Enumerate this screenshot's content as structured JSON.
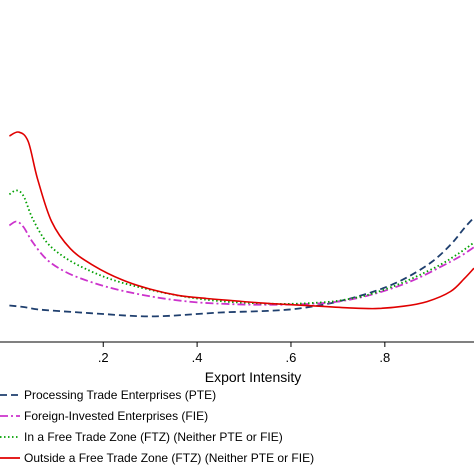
{
  "chart_data": {
    "type": "line",
    "title": "",
    "xlabel": "Export Intensity",
    "ylabel": "",
    "xlim": [
      -0.02,
      0.99
    ],
    "ylim": [
      0,
      4.4
    ],
    "x_ticks": [
      0.2,
      0.4,
      0.6,
      0.8
    ],
    "x_tick_labels": [
      ".2",
      ".4",
      ".6",
      ".8"
    ],
    "grid": false,
    "legend_position": "bottom",
    "series": [
      {
        "name": "Processing Trade Enterprises (PTE)",
        "color": "#1f3f6e",
        "dash": "dash",
        "points": [
          [
            0,
            0.47
          ],
          [
            0.03,
            0.45
          ],
          [
            0.06,
            0.42
          ],
          [
            0.1,
            0.4
          ],
          [
            0.15,
            0.38
          ],
          [
            0.2,
            0.36
          ],
          [
            0.25,
            0.34
          ],
          [
            0.3,
            0.33
          ],
          [
            0.35,
            0.34
          ],
          [
            0.4,
            0.36
          ],
          [
            0.45,
            0.38
          ],
          [
            0.5,
            0.39
          ],
          [
            0.55,
            0.4
          ],
          [
            0.6,
            0.42
          ],
          [
            0.65,
            0.46
          ],
          [
            0.7,
            0.52
          ],
          [
            0.75,
            0.6
          ],
          [
            0.8,
            0.7
          ],
          [
            0.85,
            0.84
          ],
          [
            0.9,
            1.03
          ],
          [
            0.94,
            1.25
          ],
          [
            0.97,
            1.47
          ],
          [
            0.99,
            1.6
          ]
        ]
      },
      {
        "name": "Foreign-Invested Enterprises (FIE)",
        "color": "#cc33cc",
        "dash": "dashdot",
        "points": [
          [
            0,
            1.5
          ],
          [
            0.015,
            1.55
          ],
          [
            0.03,
            1.48
          ],
          [
            0.05,
            1.28
          ],
          [
            0.08,
            1.06
          ],
          [
            0.12,
            0.9
          ],
          [
            0.17,
            0.78
          ],
          [
            0.22,
            0.69
          ],
          [
            0.28,
            0.61
          ],
          [
            0.34,
            0.55
          ],
          [
            0.4,
            0.51
          ],
          [
            0.46,
            0.49
          ],
          [
            0.52,
            0.48
          ],
          [
            0.58,
            0.48
          ],
          [
            0.64,
            0.49
          ],
          [
            0.7,
            0.52
          ],
          [
            0.76,
            0.59
          ],
          [
            0.82,
            0.7
          ],
          [
            0.87,
            0.82
          ],
          [
            0.92,
            0.97
          ],
          [
            0.96,
            1.1
          ],
          [
            0.99,
            1.22
          ]
        ]
      },
      {
        "name": "In a Free Trade Zone (FTZ)  (Neither PTE or FIE)",
        "color": "#00a000",
        "dash": "dot",
        "points": [
          [
            0,
            1.9
          ],
          [
            0.015,
            1.95
          ],
          [
            0.03,
            1.88
          ],
          [
            0.05,
            1.58
          ],
          [
            0.08,
            1.28
          ],
          [
            0.12,
            1.08
          ],
          [
            0.17,
            0.92
          ],
          [
            0.22,
            0.8
          ],
          [
            0.28,
            0.7
          ],
          [
            0.34,
            0.62
          ],
          [
            0.4,
            0.56
          ],
          [
            0.46,
            0.52
          ],
          [
            0.52,
            0.5
          ],
          [
            0.58,
            0.49
          ],
          [
            0.64,
            0.5
          ],
          [
            0.7,
            0.53
          ],
          [
            0.76,
            0.6
          ],
          [
            0.82,
            0.72
          ],
          [
            0.87,
            0.85
          ],
          [
            0.92,
            1.0
          ],
          [
            0.96,
            1.15
          ],
          [
            0.99,
            1.28
          ]
        ]
      },
      {
        "name": "Outside a Free Trade Zone (FTZ)  (Neither PTE or FIE)",
        "color": "#e00000",
        "dash": "solid",
        "points": [
          [
            0,
            2.65
          ],
          [
            0.02,
            2.7
          ],
          [
            0.04,
            2.58
          ],
          [
            0.06,
            2.1
          ],
          [
            0.09,
            1.55
          ],
          [
            0.13,
            1.2
          ],
          [
            0.18,
            0.98
          ],
          [
            0.24,
            0.8
          ],
          [
            0.3,
            0.68
          ],
          [
            0.36,
            0.6
          ],
          [
            0.42,
            0.56
          ],
          [
            0.48,
            0.53
          ],
          [
            0.54,
            0.5
          ],
          [
            0.6,
            0.48
          ],
          [
            0.66,
            0.46
          ],
          [
            0.72,
            0.44
          ],
          [
            0.78,
            0.43
          ],
          [
            0.84,
            0.46
          ],
          [
            0.89,
            0.52
          ],
          [
            0.94,
            0.65
          ],
          [
            0.97,
            0.82
          ],
          [
            0.99,
            0.95
          ]
        ]
      }
    ]
  }
}
